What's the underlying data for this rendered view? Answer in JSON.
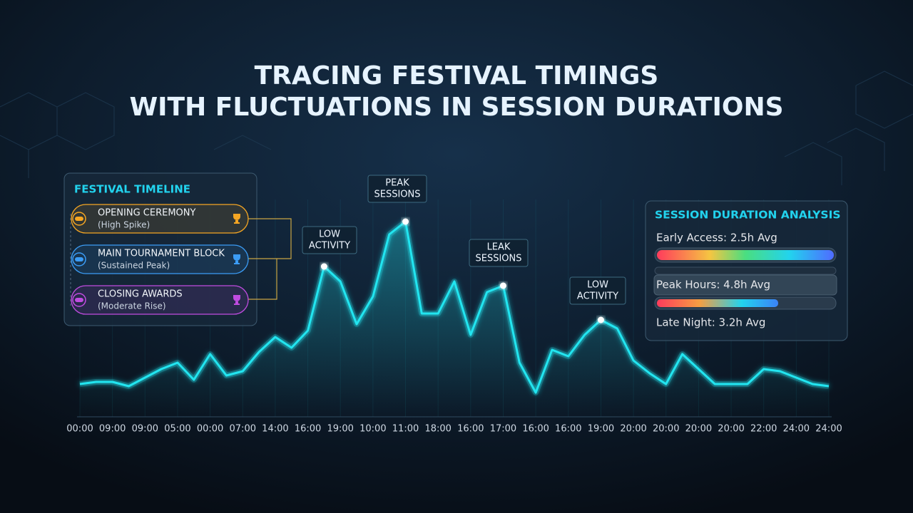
{
  "chart_data": {
    "type": "line",
    "title_lines": [
      "TRACING FESTIVAL TIMINGS",
      "WITH FLUCTUATIONS IN SESSION DURATIONS"
    ],
    "categories": [
      "00:00",
      "09:00",
      "09:00",
      "05:00",
      "00:00",
      "07:00",
      "14:00",
      "16:00",
      "19:00",
      "10:00",
      "11:00",
      "18:00",
      "16:00",
      "17:00",
      "16:00",
      "16:00",
      "19:00",
      "20:00",
      "20:00",
      "20:00",
      "20:00",
      "22:00",
      "24:00",
      "24:00"
    ],
    "series": [
      {
        "color": "#22e5f0",
        "x": [
          0,
          0.5,
          1,
          1.5,
          2,
          2.5,
          3,
          3.5,
          4,
          4.5,
          5,
          5.5,
          6,
          6.5,
          7,
          7.5,
          8,
          8.5,
          9,
          9.5,
          10,
          10.5,
          11,
          11.5,
          12,
          12.5,
          13,
          13.5,
          14,
          14.5,
          15,
          15.5,
          16,
          16.5,
          17,
          17.5,
          18,
          18.5,
          19,
          19.5,
          20,
          20.5,
          21,
          21.5,
          22,
          22.5,
          23
        ],
        "values": [
          17,
          18,
          18,
          16,
          20,
          24,
          27,
          19,
          31,
          21,
          23,
          32,
          39,
          34,
          42,
          72,
          65,
          45,
          58,
          87,
          93,
          50,
          50,
          65,
          40,
          60,
          63,
          27,
          13,
          33,
          30,
          40,
          47,
          43,
          28,
          22,
          17,
          31,
          24,
          17,
          17,
          17,
          24,
          23,
          20,
          17,
          16
        ]
      }
    ],
    "xlim": [
      0,
      23
    ],
    "ylim": [
      0,
      100
    ],
    "annotations": [
      {
        "lines": [
          "LOW",
          "ACTIVITY"
        ]
      },
      {
        "lines": [
          "PEAK",
          "SESSIONS"
        ]
      },
      {
        "lines": [
          "LEAK",
          "SESSIONS"
        ]
      },
      {
        "lines": [
          "LOW",
          "ACTIVITY"
        ]
      }
    ]
  },
  "timeline_panel": {
    "title": "FESTIVAL TIMELINE",
    "items": [
      {
        "title": "OPENING CEREMONY",
        "subtitle": "(High Spike)"
      },
      {
        "title": "MAIN TOURNAMENT BLOCK",
        "subtitle": "(Sustained Peak)"
      },
      {
        "title": "CLOSING AWARDS",
        "subtitle": "(Moderate Rise)"
      }
    ]
  },
  "duration_panel": {
    "title": "SESSION DURATION ANALYSIS",
    "rows": [
      "Early Access: 2.5h Avg",
      "Peak Hours: 4.8h Avg",
      "Late Night: 3.2h Avg"
    ]
  }
}
